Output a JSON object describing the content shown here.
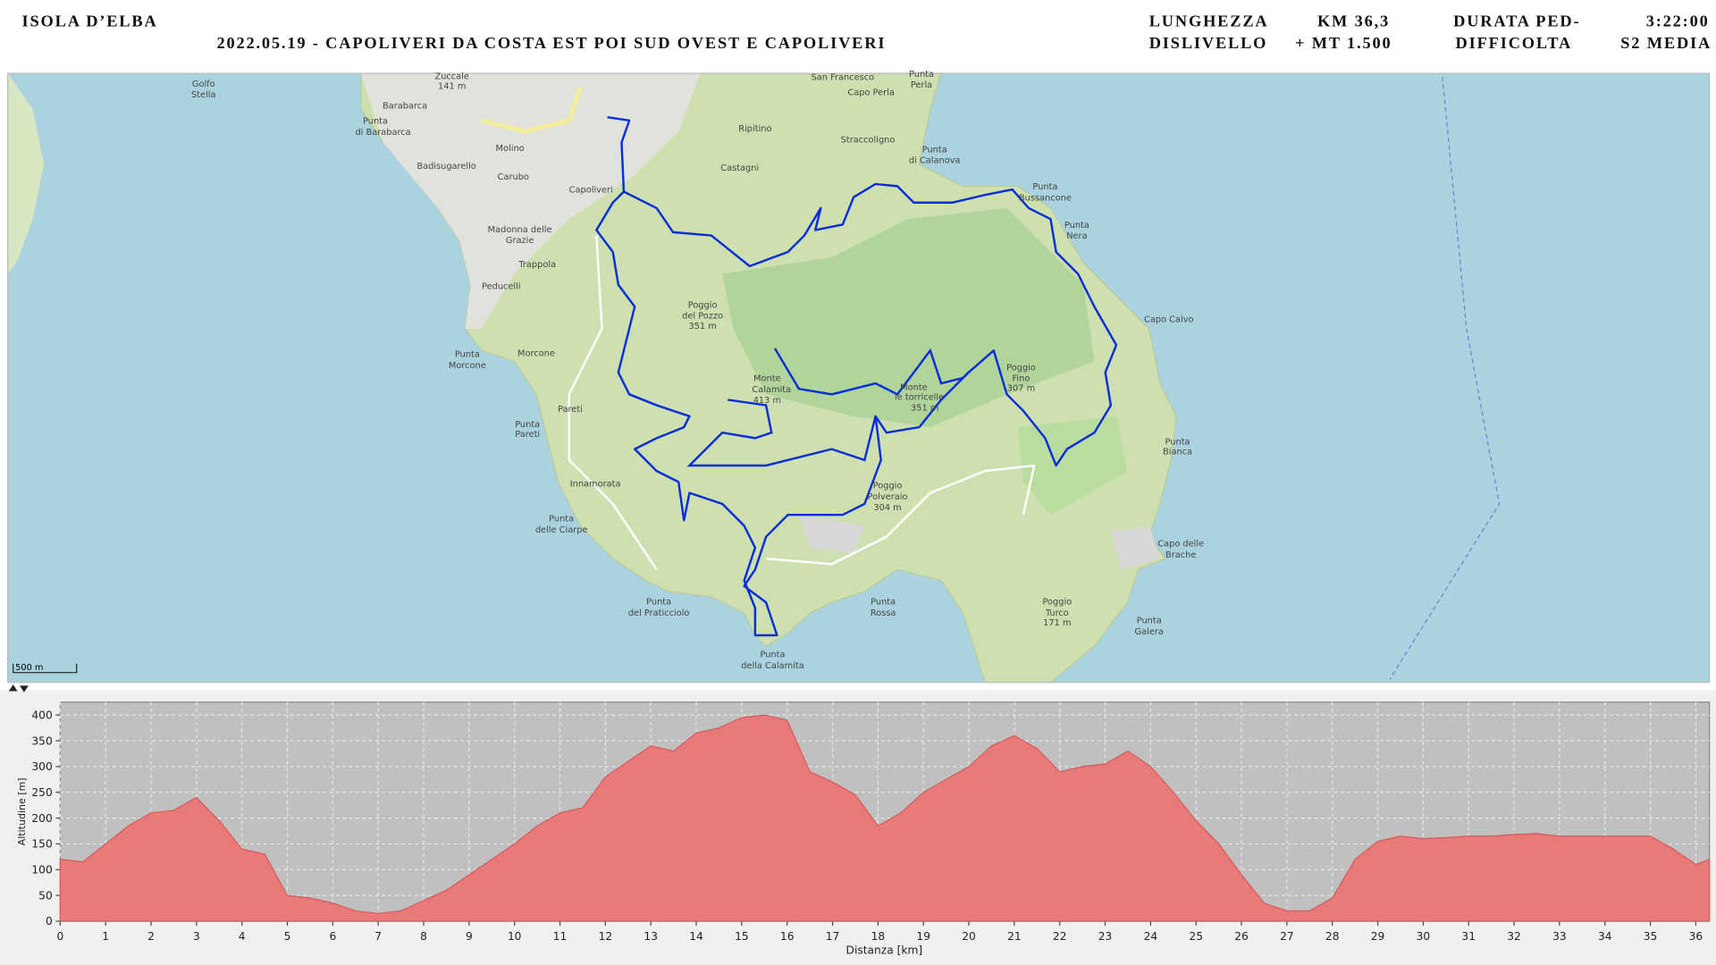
{
  "header": {
    "place": "ISOLA D’ELBA",
    "subtitle": "2022.05.19 - CAPOLIVERI DA COSTA EST POI SUD OVEST E CAPOLIVERI",
    "fields": [
      [
        "LUNGHEZZA",
        "KM  36,3"
      ],
      [
        "DISLIVELLO",
        "+ MT 1.500"
      ],
      [
        "DURATA PED-",
        "3:22:00"
      ],
      [
        "DIFFICOLTA",
        "S2 MEDIA"
      ]
    ]
  },
  "map": {
    "scale": "500 m",
    "labels": [
      "Zuccale",
      "141 m",
      "Barabarca",
      "Punta",
      "di Barabarca",
      "Molino",
      "Badisugarello",
      "Carubo",
      "Capoliveri",
      "Madonna delle",
      "Grazie",
      "Trappola",
      "Peducelli",
      "Morcone",
      "Punta",
      "Morcone",
      "Pareti",
      "Punta",
      "Pareti",
      "Innamorata",
      "Punta",
      "delle Ciarpe",
      "Punta",
      "del Praticciolo",
      "Punta",
      "della Calamita",
      "Punta",
      "Rossa",
      "Poggio",
      "del Pozzo",
      "351 m",
      "Monte",
      "Calamita",
      "413 m",
      "Monte",
      "le torricelle",
      "351 m",
      "Poggio",
      "Polveraio",
      "304 m",
      "Poggio",
      "Fino",
      "307 m",
      "Poggio",
      "Turco",
      "171 m",
      "San Francesco",
      "Punta",
      "Perla",
      "Capo Perla",
      "Ripitino",
      "Castagni",
      "Straccoligno",
      "Punta",
      "di Calanova",
      "Punta",
      "Bussancone",
      "Punta",
      "Nera",
      "Capo Calvo",
      "Punta",
      "Bianca",
      "Capo delle",
      "Brache",
      "Punta",
      "Galera",
      "Golfo",
      "Stella"
    ]
  },
  "chart_data": {
    "type": "area",
    "xlabel": "Distanza [km]",
    "ylabel": "Altitudine [m]",
    "color": "#e97a7a",
    "grid": true,
    "x": [
      0,
      0.5,
      1,
      1.5,
      2,
      2.5,
      3,
      3.5,
      4,
      4.5,
      5,
      5.5,
      6,
      6.5,
      7,
      7.5,
      8,
      8.5,
      9,
      9.5,
      10,
      10.5,
      11,
      11.5,
      12,
      12.5,
      13,
      13.5,
      14,
      14.5,
      15,
      15.5,
      16,
      16.5,
      17,
      17.5,
      18,
      18.5,
      19,
      19.5,
      20,
      20.5,
      21,
      21.5,
      22,
      22.5,
      23,
      23.5,
      24,
      24.5,
      25,
      25.5,
      26,
      26.5,
      27,
      27.5,
      28,
      28.5,
      29,
      29.5,
      30,
      30.5,
      31,
      31.5,
      32,
      32.5,
      33,
      33.5,
      34,
      34.5,
      35,
      35.5,
      36,
      36.3
    ],
    "values": [
      120,
      115,
      150,
      185,
      210,
      215,
      240,
      195,
      140,
      130,
      50,
      45,
      35,
      20,
      15,
      20,
      40,
      60,
      90,
      120,
      150,
      185,
      210,
      220,
      280,
      310,
      340,
      330,
      365,
      375,
      395,
      400,
      390,
      290,
      270,
      245,
      185,
      210,
      250,
      275,
      300,
      340,
      360,
      335,
      290,
      300,
      305,
      330,
      300,
      250,
      195,
      150,
      90,
      35,
      20,
      20,
      45,
      120,
      155,
      165,
      160,
      162,
      165,
      165,
      168,
      170,
      165,
      165,
      165,
      165,
      165,
      140,
      110,
      120
    ],
    "xlim": [
      0,
      36.3
    ],
    "ylim": [
      0,
      425
    ],
    "xticks": [
      0,
      1,
      2,
      3,
      4,
      5,
      6,
      7,
      8,
      9,
      10,
      11,
      12,
      13,
      14,
      15,
      16,
      17,
      18,
      19,
      20,
      21,
      22,
      23,
      24,
      25,
      26,
      27,
      28,
      29,
      30,
      31,
      32,
      33,
      34,
      35,
      36
    ],
    "yticks": [
      0,
      50,
      100,
      150,
      200,
      250,
      300,
      350,
      400
    ]
  }
}
